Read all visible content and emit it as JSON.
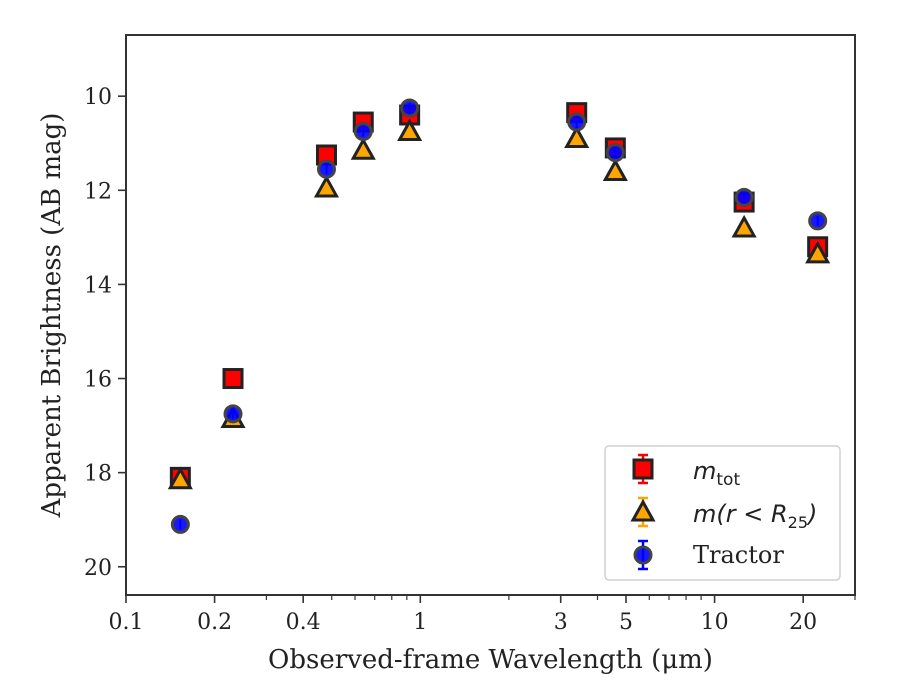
{
  "chart_data": {
    "type": "scatter",
    "title": "",
    "xlabel": "Observed-frame Wavelength (μm)",
    "ylabel": "Apparent Brightness (AB mag)",
    "xscale": "log",
    "xlim": [
      0.1,
      30
    ],
    "ylim": [
      20.6,
      8.7
    ],
    "y_inverted": true,
    "x_ticks": [
      {
        "value": 0.1,
        "label": "0.1"
      },
      {
        "value": 0.2,
        "label": "0.2"
      },
      {
        "value": 0.4,
        "label": "0.4"
      },
      {
        "value": 1,
        "label": "1"
      },
      {
        "value": 3,
        "label": "3"
      },
      {
        "value": 5,
        "label": "5"
      },
      {
        "value": 10,
        "label": "10"
      },
      {
        "value": 20,
        "label": "20"
      }
    ],
    "y_ticks": [
      {
        "value": 10,
        "label": "10"
      },
      {
        "value": 12,
        "label": "12"
      },
      {
        "value": 14,
        "label": "14"
      },
      {
        "value": 16,
        "label": "16"
      },
      {
        "value": 18,
        "label": "18"
      },
      {
        "value": 20,
        "label": "20"
      }
    ],
    "legend_placement": "lower-right",
    "series": [
      {
        "name": "m_tot",
        "marker": "square",
        "face_color": "#ff0000",
        "edge_color": "#222222",
        "error_color": "#ff0000",
        "points": [
          {
            "x": 0.153,
            "y": 18.1
          },
          {
            "x": 0.231,
            "y": 16.0
          },
          {
            "x": 0.48,
            "y": 11.25
          },
          {
            "x": 0.64,
            "y": 10.55
          },
          {
            "x": 0.92,
            "y": 10.4
          },
          {
            "x": 3.4,
            "y": 10.35
          },
          {
            "x": 4.6,
            "y": 11.1
          },
          {
            "x": 12.6,
            "y": 12.25
          },
          {
            "x": 22.4,
            "y": 13.2
          }
        ]
      },
      {
        "name": "m(r < R25)",
        "marker": "triangle",
        "face_color": "#ffa500",
        "edge_color": "#222222",
        "error_color": "#ffa500",
        "points": [
          {
            "x": 0.153,
            "y": 18.15
          },
          {
            "x": 0.231,
            "y": 16.85
          },
          {
            "x": 0.48,
            "y": 11.95
          },
          {
            "x": 0.64,
            "y": 11.15
          },
          {
            "x": 0.92,
            "y": 10.75
          },
          {
            "x": 3.4,
            "y": 10.9
          },
          {
            "x": 4.6,
            "y": 11.6
          },
          {
            "x": 12.6,
            "y": 12.8
          },
          {
            "x": 22.4,
            "y": 13.35
          }
        ]
      },
      {
        "name": "Tractor",
        "marker": "circle",
        "face_color": "#0000ff",
        "edge_color": "#444444",
        "error_color": "#0000ff",
        "points": [
          {
            "x": 0.153,
            "y": 19.1
          },
          {
            "x": 0.231,
            "y": 16.75
          },
          {
            "x": 0.48,
            "y": 11.55
          },
          {
            "x": 0.64,
            "y": 10.75
          },
          {
            "x": 0.92,
            "y": 10.25
          },
          {
            "x": 3.4,
            "y": 10.55
          },
          {
            "x": 4.6,
            "y": 11.2
          },
          {
            "x": 12.6,
            "y": 12.15
          },
          {
            "x": 22.4,
            "y": 12.65
          }
        ]
      }
    ]
  },
  "legend": {
    "items": [
      {
        "label_main": "m",
        "label_sub": "tot",
        "label_tail": ""
      },
      {
        "label_main": "m(r < R",
        "label_sub": "25",
        "label_tail": ")"
      },
      {
        "label_main": "Tractor",
        "label_sub": "",
        "label_tail": ""
      }
    ]
  }
}
